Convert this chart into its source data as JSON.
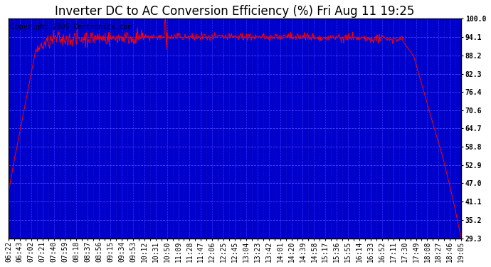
{
  "title": "Inverter DC to AC Conversion Efficiency (%) Fri Aug 11 19:25",
  "copyright_text": "Copyright 2006 Certronics.com",
  "plot_bg_color": "#0000CC",
  "line_color": "#FF0000",
  "outer_bg_color": "#FFFFFF",
  "ytick_labels": [
    "29.3",
    "35.2",
    "41.1",
    "47.0",
    "52.9",
    "58.8",
    "64.7",
    "70.6",
    "76.4",
    "82.3",
    "88.2",
    "94.1",
    "100.0"
  ],
  "ytick_values": [
    29.3,
    35.2,
    41.1,
    47.0,
    52.9,
    58.8,
    64.7,
    70.6,
    76.4,
    82.3,
    88.2,
    94.1,
    100.0
  ],
  "ymin": 29.3,
  "ymax": 100.0,
  "xtick_labels": [
    "06:22",
    "06:43",
    "07:02",
    "07:21",
    "07:40",
    "07:59",
    "08:18",
    "08:37",
    "08:56",
    "09:15",
    "09:34",
    "09:53",
    "10:12",
    "10:31",
    "10:50",
    "11:09",
    "11:28",
    "11:47",
    "12:06",
    "12:25",
    "12:45",
    "13:04",
    "13:23",
    "13:42",
    "14:01",
    "14:20",
    "14:39",
    "14:58",
    "15:17",
    "15:36",
    "15:55",
    "16:14",
    "16:33",
    "16:52",
    "17:11",
    "17:30",
    "17:49",
    "18:08",
    "18:27",
    "18:46",
    "19:05"
  ],
  "title_fontsize": 12,
  "copyright_fontsize": 7,
  "tick_fontsize": 7,
  "title_color": "#000000",
  "tick_color": "#000000",
  "grid_major_color": "#4444FF",
  "grid_minor_color": "#2222AA"
}
